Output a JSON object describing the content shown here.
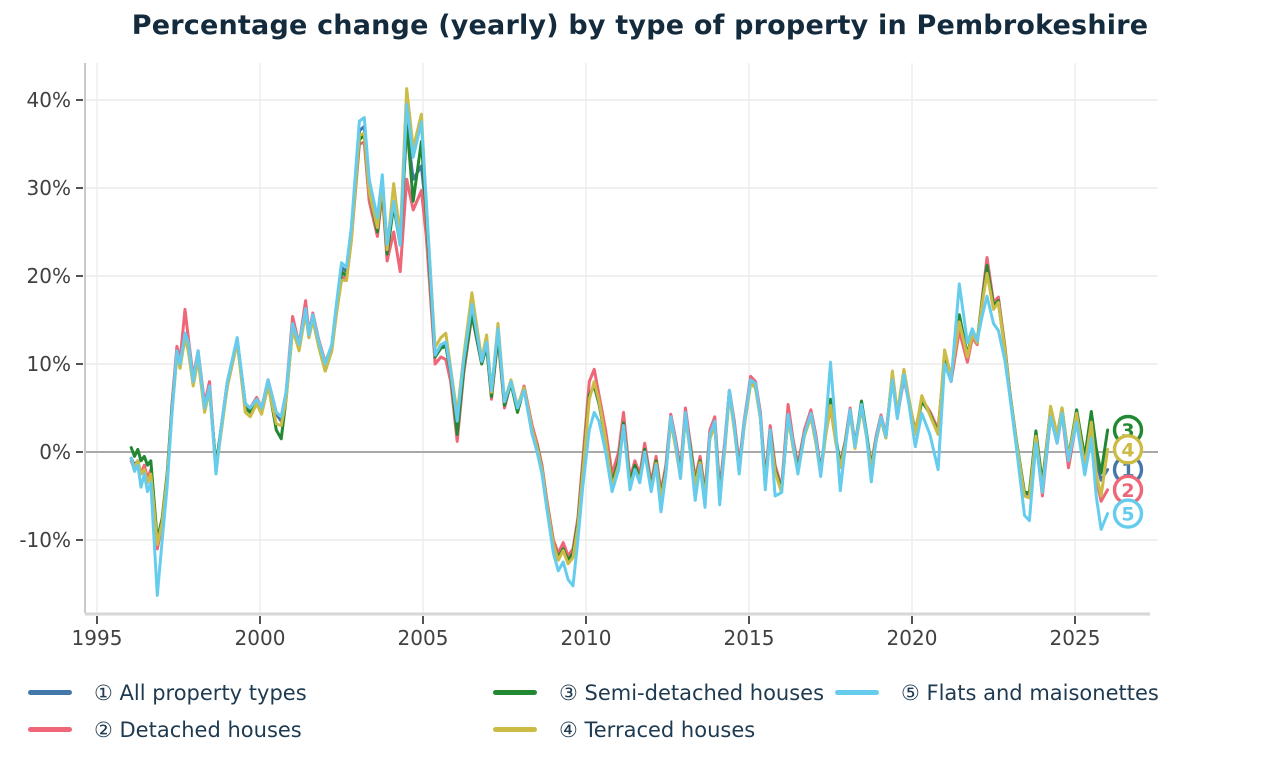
{
  "title": "Percentage change (yearly) by type of property in Pembrokeshire",
  "colors": {
    "title_text": "#132b3d",
    "axis_text": "#414042",
    "legend_text": "#1e3a50",
    "gridline": "#ececec",
    "zero_line": "#a8a8a8",
    "axis_line": "#c9c9c9",
    "tick_mark": "#3f3f3f",
    "series_blue": "#4477AA",
    "series_pink": "#EE6677",
    "series_green": "#228833",
    "series_yellow": "#CCBB44",
    "series_skyblue": "#66CCEE"
  },
  "legend": {
    "items": [
      {
        "text": "① All property types",
        "color": "#4477AA",
        "col": 0
      },
      {
        "text": "② Detached houses",
        "color": "#EE6677",
        "col": 0
      },
      {
        "text": "③ Semi-detached houses",
        "color": "#228833",
        "col": 1
      },
      {
        "text": "④ Terraced houses",
        "color": "#CCBB44",
        "col": 1
      },
      {
        "text": "⑤ Flats and maisonettes",
        "color": "#66CCEE",
        "col": 2
      }
    ]
  },
  "chart_data": {
    "type": "line",
    "title": "Percentage change (yearly) by type of property in Pembrokeshire",
    "xlabel": "",
    "ylabel": "Percentage change (yearly)",
    "grid": true,
    "legend_position": "bottom",
    "xlim": [
      1994.6,
      2027.5
    ],
    "ylim": [
      -18.3,
      44.2
    ],
    "xticks": [
      1995,
      2000,
      2005,
      2010,
      2015,
      2020,
      2025
    ],
    "yticks": [
      {
        "v": 40,
        "label": "40%"
      },
      {
        "v": 30,
        "label": "30%"
      },
      {
        "v": 20,
        "label": "20%"
      },
      {
        "v": 10,
        "label": "10%"
      },
      {
        "v": 0,
        "label": "0%"
      },
      {
        "v": -10,
        "label": "-10%"
      }
    ],
    "x": [
      1996.05,
      1996.15,
      1996.25,
      1996.35,
      1996.45,
      1996.55,
      1996.65,
      1996.85,
      1997.0,
      1997.15,
      1997.3,
      1997.45,
      1997.55,
      1997.7,
      1997.8,
      1997.95,
      1998.1,
      1998.3,
      1998.45,
      1998.65,
      1998.8,
      1999.0,
      1999.3,
      1999.55,
      1999.7,
      1999.9,
      2000.05,
      2000.25,
      2000.5,
      2000.65,
      2000.8,
      2001.0,
      2001.2,
      2001.4,
      2001.5,
      2001.62,
      2001.8,
      2002.0,
      2002.2,
      2002.35,
      2002.5,
      2002.65,
      2002.8,
      2003.05,
      2003.2,
      2003.35,
      2003.6,
      2003.75,
      2003.9,
      2004.1,
      2004.3,
      2004.5,
      2004.7,
      2004.95,
      2005.1,
      2005.37,
      2005.55,
      2005.7,
      2005.85,
      2006.05,
      2006.25,
      2006.5,
      2006.8,
      2006.95,
      2007.1,
      2007.3,
      2007.5,
      2007.7,
      2007.9,
      2008.1,
      2008.35,
      2008.5,
      2008.65,
      2008.8,
      2009.0,
      2009.15,
      2009.3,
      2009.45,
      2009.6,
      2009.75,
      2009.9,
      2010.1,
      2010.25,
      2010.4,
      2010.6,
      2010.8,
      2011.0,
      2011.15,
      2011.35,
      2011.5,
      2011.65,
      2011.8,
      2012.0,
      2012.15,
      2012.3,
      2012.45,
      2012.6,
      2012.75,
      2012.9,
      2013.05,
      2013.2,
      2013.35,
      2013.5,
      2013.65,
      2013.8,
      2013.95,
      2014.1,
      2014.25,
      2014.4,
      2014.55,
      2014.7,
      2014.85,
      2015.05,
      2015.2,
      2015.35,
      2015.5,
      2015.65,
      2015.8,
      2016.0,
      2016.2,
      2016.35,
      2016.5,
      2016.7,
      2016.9,
      2017.05,
      2017.2,
      2017.35,
      2017.5,
      2017.65,
      2017.8,
      2017.95,
      2018.1,
      2018.25,
      2018.45,
      2018.6,
      2018.75,
      2018.9,
      2019.05,
      2019.2,
      2019.4,
      2019.55,
      2019.75,
      2019.9,
      2020.1,
      2020.3,
      2020.55,
      2020.8,
      2021.0,
      2021.2,
      2021.45,
      2021.7,
      2021.85,
      2022.0,
      2022.15,
      2022.3,
      2022.5,
      2022.65,
      2022.85,
      2023.0,
      2023.2,
      2023.45,
      2023.6,
      2023.8,
      2024.0,
      2024.25,
      2024.45,
      2024.6,
      2024.8,
      2025.05,
      2025.3,
      2025.5,
      2025.65,
      2025.8,
      2026.0
    ],
    "series": [
      {
        "id": 1,
        "digit": "1",
        "name": "All property types",
        "color": "#4477AA",
        "values": [
          -0.7,
          -1.5,
          -1,
          -2.5,
          -1.8,
          -3,
          -2.5,
          -11,
          -8,
          -3,
          5,
          11.5,
          10,
          13.5,
          12,
          8,
          11,
          5,
          7.5,
          -2,
          2.5,
          8,
          12.8,
          5.5,
          4.7,
          6,
          4.8,
          8,
          4.3,
          3.5,
          6.5,
          14.5,
          12,
          16.3,
          13.2,
          15.5,
          12.5,
          9.7,
          12,
          16.5,
          21,
          20.5,
          25,
          36.5,
          37,
          30,
          25.5,
          30.5,
          23,
          28.5,
          24,
          37,
          31,
          32.5,
          27,
          11,
          12,
          12.3,
          9,
          3,
          10,
          16,
          10.2,
          12.3,
          6.5,
          13.5,
          5.5,
          8,
          5,
          7.3,
          2.5,
          0.5,
          -2,
          -6,
          -10.5,
          -12,
          -11,
          -12.5,
          -11.8,
          -8,
          -2,
          6.5,
          7.5,
          5.5,
          1.5,
          -3.5,
          -1,
          3.5,
          -3.5,
          -1.5,
          -3,
          0.5,
          -4,
          -1,
          -5,
          -2,
          4,
          1,
          -2.5,
          4.3,
          0.5,
          -3.5,
          -1,
          -5,
          2,
          3.5,
          -5,
          0.5,
          7,
          3,
          -2,
          3,
          8,
          7.5,
          4,
          -3.5,
          2.5,
          -2,
          -4.3,
          4.3,
          1,
          -2,
          2,
          4.4,
          1.5,
          -2.3,
          2,
          5.5,
          1.5,
          -1.5,
          1,
          4.8,
          0.8,
          5.3,
          2,
          -1.8,
          1.5,
          4,
          1.8,
          8.8,
          4.2,
          8.8,
          6,
          2.2,
          5.8,
          4.4,
          2.2,
          10.8,
          8.2,
          15.2,
          10.8,
          13.4,
          12.4,
          17,
          20.6,
          16.4,
          17,
          11.6,
          6.6,
          1.2,
          -4.8,
          -5,
          1.8,
          -4.4,
          4.6,
          1.4,
          4.8,
          -0.8,
          4.2,
          -1.6,
          3,
          -1,
          -3.2,
          -2
        ]
      },
      {
        "id": 2,
        "digit": "2",
        "name": "Detached houses",
        "color": "#EE6677",
        "values": [
          -1,
          -2,
          -1.2,
          -2.5,
          -1.5,
          -3,
          -2,
          -11,
          -8,
          -3,
          5.5,
          12,
          10.5,
          16.2,
          13,
          8.5,
          11.5,
          5.5,
          8,
          -2.2,
          2.5,
          8,
          12.5,
          5.5,
          5,
          6.2,
          5,
          8.2,
          4.5,
          4,
          6.8,
          15.4,
          12.2,
          17.2,
          13.5,
          15.8,
          12.8,
          10.2,
          12,
          16,
          20,
          19.5,
          24,
          35,
          35.2,
          28.5,
          24.5,
          29.5,
          21.7,
          25,
          20.5,
          31,
          27.5,
          29.7,
          24.5,
          10,
          10.8,
          10.5,
          8,
          1.2,
          9,
          15.5,
          10,
          12,
          6,
          13,
          5,
          8,
          5,
          7.5,
          3,
          1,
          -1.5,
          -5.5,
          -10,
          -11.5,
          -10.3,
          -11.8,
          -11,
          -7.5,
          -1,
          8,
          9.4,
          6.5,
          2.5,
          -2.5,
          0,
          4.5,
          -3,
          -1,
          -2.5,
          1,
          -3.5,
          -0.5,
          -4.5,
          -1.5,
          4.3,
          1.5,
          -2,
          5,
          1,
          -3,
          -0.5,
          -4.5,
          2.5,
          4,
          -4.3,
          1,
          7,
          3.5,
          -1.5,
          3.5,
          8.6,
          8,
          4.5,
          -3,
          3,
          -1.5,
          -4,
          5.4,
          1.5,
          -1.5,
          2.5,
          4.8,
          2,
          -2,
          2,
          5,
          1.5,
          -1.2,
          1.2,
          5,
          1,
          5,
          2,
          -1.5,
          1.8,
          4.2,
          2,
          8.5,
          4,
          8.3,
          5.8,
          2.4,
          6,
          4.6,
          2.6,
          10.4,
          8,
          13.8,
          10.2,
          13,
          12.2,
          17.4,
          22.1,
          17,
          17.6,
          12,
          6.8,
          1,
          -5,
          -5.2,
          1.6,
          -5,
          4,
          1,
          4.4,
          -1.8,
          3.6,
          -2.2,
          1.6,
          -3,
          -5.6,
          -4.3
        ]
      },
      {
        "id": 3,
        "digit": "3",
        "name": "Semi-detached houses",
        "color": "#228833",
        "values": [
          0.5,
          -0.5,
          0.3,
          -1,
          -0.5,
          -1.5,
          -1,
          -10,
          -7.5,
          -2.5,
          5,
          11,
          10,
          13,
          11.5,
          8,
          10.5,
          5,
          7,
          -1.5,
          2.5,
          7.5,
          12.5,
          5,
          4.5,
          5.8,
          4.5,
          7.8,
          2.5,
          1.5,
          6,
          14,
          11.8,
          16,
          13,
          15.2,
          12,
          9.2,
          11.5,
          16,
          20.5,
          20,
          24.5,
          35.5,
          36,
          29.5,
          25,
          30,
          22.5,
          28,
          23.5,
          37.5,
          28.5,
          35.3,
          27,
          10.8,
          11.8,
          12,
          9,
          2,
          9.5,
          15.7,
          10,
          12,
          6.3,
          13.2,
          5.3,
          7.8,
          4.5,
          7.3,
          2,
          0.7,
          -2,
          -6,
          -10.5,
          -12,
          -11,
          -12.3,
          -11.5,
          -8,
          -2,
          6.5,
          7.5,
          5.5,
          1.5,
          -3.5,
          -1,
          3.3,
          -3.5,
          -1.5,
          -3,
          0.3,
          -4,
          -1,
          -5,
          -2,
          3.8,
          1,
          -2.5,
          4,
          0.5,
          -3.5,
          -1,
          -5,
          1.8,
          3.3,
          -5,
          0.3,
          6.8,
          3,
          -2,
          3,
          7.8,
          7.3,
          4,
          -3.5,
          2.3,
          -2,
          -4.3,
          4,
          1,
          -2,
          2,
          4.2,
          1.3,
          -2.3,
          2.2,
          6,
          2,
          -1.5,
          1,
          4.6,
          0.6,
          5.8,
          2.3,
          -1.8,
          1.4,
          3.8,
          1.6,
          8.8,
          4.2,
          8.8,
          6,
          2.2,
          5.8,
          4.4,
          2.2,
          10.8,
          8.4,
          15.6,
          11,
          13.6,
          12.6,
          17.2,
          21.2,
          16.6,
          17.2,
          11.8,
          6.8,
          1.4,
          -4.6,
          -4.6,
          2.4,
          -3.6,
          5,
          1.8,
          5,
          -0.6,
          4.8,
          -0.6,
          4.6,
          0.5,
          -2.4,
          2.5
        ]
      },
      {
        "id": 4,
        "digit": "4",
        "name": "Terraced houses",
        "color": "#CCBB44",
        "values": [
          -0.7,
          -1.8,
          -1,
          -2.5,
          -2,
          -3.5,
          -2.5,
          -10.5,
          -8,
          -3,
          4.5,
          11,
          9.5,
          13,
          11.5,
          7.5,
          10.5,
          4.5,
          7,
          -2,
          2,
          7.5,
          12.5,
          4.5,
          4,
          5.5,
          4.3,
          7.5,
          3.2,
          3,
          6,
          14,
          11.5,
          15.8,
          13,
          15,
          12,
          9.2,
          11.5,
          15.8,
          19.5,
          19.5,
          24,
          36,
          36.2,
          29.5,
          25.5,
          30.5,
          23,
          30.5,
          24.5,
          41.3,
          34.5,
          38.4,
          28,
          11.9,
          13,
          13.5,
          9.5,
          4.3,
          11,
          18.1,
          10.5,
          13.3,
          6.8,
          14.6,
          5.8,
          8.2,
          5.2,
          7.3,
          2.5,
          0.5,
          -2,
          -6,
          -10.5,
          -12.3,
          -11.2,
          -12.7,
          -12,
          -8.5,
          -2.5,
          6,
          8,
          5.8,
          1.5,
          -4,
          -1.5,
          3,
          -4,
          -2,
          -3.2,
          0,
          -4.3,
          -1.3,
          -5.3,
          -2.3,
          3.5,
          0.5,
          -3,
          4,
          0,
          -3.8,
          -1.2,
          -5.3,
          1.5,
          3,
          -5.5,
          0,
          6.5,
          2.5,
          -2.3,
          2.8,
          7.8,
          7.3,
          3.8,
          -3.8,
          2,
          -2.3,
          -4.6,
          4,
          0.5,
          -2.3,
          1.8,
          4,
          1,
          -2.6,
          1.8,
          5.3,
          1.3,
          -1.8,
          0.8,
          4.4,
          0.4,
          5,
          1.8,
          -2,
          1.2,
          3.8,
          1.6,
          9.2,
          4.4,
          9.4,
          6.2,
          2,
          6.4,
          4.2,
          2,
          11.6,
          8.6,
          14.8,
          10.8,
          13.4,
          12.4,
          16.8,
          20.3,
          16.2,
          17,
          11.6,
          6.6,
          1.2,
          -5,
          -5.2,
          1.8,
          -4.4,
          5.2,
          2,
          5,
          -0.8,
          4.4,
          -1.6,
          3.4,
          -2.5,
          -5,
          0.3
        ]
      },
      {
        "id": 5,
        "digit": "5",
        "name": "Flats and maisonettes",
        "color": "#66CCEE",
        "values": [
          -0.7,
          -2.2,
          -1.5,
          -4,
          -2.5,
          -4.5,
          -3.5,
          -16.3,
          -10,
          -4,
          4.5,
          11.5,
          10,
          13.5,
          12.5,
          8,
          11.5,
          5,
          7.5,
          -2.5,
          2.5,
          8,
          13,
          5.5,
          5,
          6,
          5,
          8.2,
          4.5,
          4,
          6.8,
          14.6,
          12.2,
          16.3,
          13.3,
          15.6,
          12.6,
          10,
          12.2,
          17,
          21.5,
          21,
          25.5,
          37.6,
          38,
          31,
          26.6,
          31.5,
          23.6,
          28.5,
          23.5,
          39.5,
          33.5,
          37.5,
          28.5,
          11,
          12.2,
          12.5,
          9.2,
          3.5,
          10.5,
          16.8,
          10.3,
          12.5,
          7,
          14,
          5.7,
          8,
          5,
          7,
          2,
          0,
          -2.5,
          -6.5,
          -11.5,
          -13.5,
          -12.5,
          -14.5,
          -15.2,
          -10,
          -4,
          2.5,
          4.5,
          3.5,
          0,
          -4.5,
          -2,
          3,
          -4.3,
          -2,
          -3.5,
          0,
          -4.5,
          -1.5,
          -6.8,
          -2.5,
          4,
          1,
          -3,
          4.5,
          0,
          -5.5,
          -1.5,
          -6.3,
          2,
          3.5,
          -6,
          0.5,
          7,
          3,
          -2.5,
          3.2,
          8.2,
          7.8,
          4,
          -4.3,
          2.5,
          -5,
          -4.6,
          4.3,
          1,
          -2.5,
          2,
          4.4,
          1.5,
          -2.8,
          3,
          10.2,
          3,
          -4.4,
          0.5,
          4.8,
          0.6,
          5.4,
          2,
          -3.4,
          1.4,
          4,
          1.8,
          8.2,
          3.8,
          8.8,
          5.6,
          0.6,
          4.4,
          2,
          -2,
          10,
          8,
          19.1,
          12.4,
          14,
          12.6,
          15.4,
          17.7,
          14.6,
          13.8,
          10.4,
          6.4,
          0.6,
          -7.2,
          -7.8,
          1,
          -4.6,
          4,
          1,
          4.4,
          -1,
          3.4,
          -2.6,
          1.6,
          -5,
          -8.8,
          -7
        ]
      }
    ],
    "end_markers": [
      {
        "digit": "3",
        "value": 2.5,
        "color": "#228833"
      },
      {
        "digit": "4",
        "value": 0.3,
        "color": "#CCBB44"
      },
      {
        "digit": "1",
        "value": -2.0,
        "color": "#4477AA"
      },
      {
        "digit": "2",
        "value": -4.3,
        "color": "#EE6677"
      },
      {
        "digit": "5",
        "value": -7.0,
        "color": "#66CCEE"
      }
    ]
  }
}
